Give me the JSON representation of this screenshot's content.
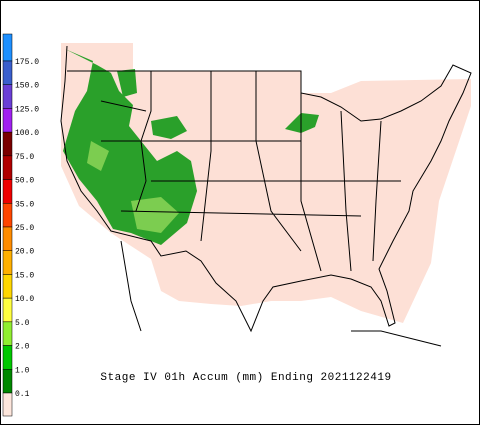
{
  "legend": {
    "labels": [
      "175.0",
      "150.0",
      "125.0",
      "100.0",
      "75.0",
      "50.0",
      "35.0",
      "25.0",
      "20.0",
      "15.0",
      "10.0",
      "5.0",
      "2.0",
      "1.0",
      "0.1"
    ],
    "colors": [
      "#1e90ff",
      "#3a5fcd",
      "#6a3fd6",
      "#a020f0",
      "#7a0000",
      "#b00000",
      "#ee0000",
      "#ff4500",
      "#ff8c00",
      "#ffb000",
      "#ffd700",
      "#ffff40",
      "#90ee30",
      "#00c800",
      "#008800",
      "#fde6dc"
    ]
  },
  "title": "Stage IV 01h Accum (mm) Ending 2021122419"
}
